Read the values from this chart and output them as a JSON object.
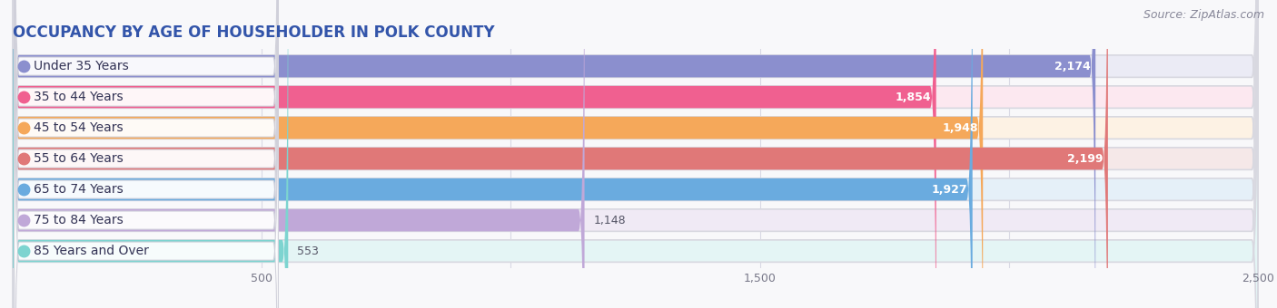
{
  "title": "OCCUPANCY BY AGE OF HOUSEHOLDER IN POLK COUNTY",
  "source": "Source: ZipAtlas.com",
  "categories": [
    "Under 35 Years",
    "35 to 44 Years",
    "45 to 54 Years",
    "55 to 64 Years",
    "65 to 74 Years",
    "75 to 84 Years",
    "85 Years and Over"
  ],
  "values": [
    2174,
    1854,
    1948,
    2199,
    1927,
    1148,
    553
  ],
  "bar_colors": [
    "#8b8fce",
    "#f06090",
    "#f5a85a",
    "#e07878",
    "#6aabdf",
    "#c0a8d8",
    "#7dd4d0"
  ],
  "bar_bg_colors": [
    "#ebebf5",
    "#fce8f0",
    "#fdf2e4",
    "#f5e8e8",
    "#e5f0f8",
    "#f0eaf5",
    "#e4f5f5"
  ],
  "label_pill_color": "#f0f0f0",
  "xlim": [
    0,
    2500
  ],
  "xticks": [
    500,
    1500,
    2500
  ],
  "xtick_labels": [
    "500",
    "1,500",
    "2,500"
  ],
  "background_color": "#f0f0f5",
  "title_fontsize": 12,
  "source_fontsize": 9,
  "label_fontsize": 10,
  "value_fontsize": 9,
  "value_threshold": 1400
}
